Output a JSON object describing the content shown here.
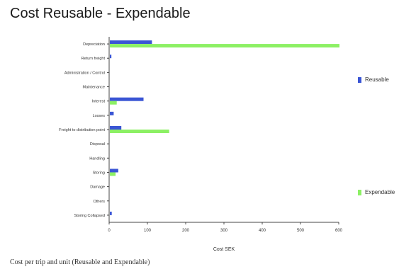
{
  "title": "Cost Reusable - Expendable",
  "caption": "Cost per trip and unit (Reusable and Expendable)",
  "chart_data": {
    "type": "bar",
    "orientation": "horizontal",
    "categories": [
      "Depreciation",
      "Return freight",
      "Administration / Control",
      "Maintenance",
      "Interest",
      "Losses",
      "Freight to distribution point",
      "Disposal",
      "Handling",
      "Storing",
      "Damage",
      "Others",
      "Storing Collapsed"
    ],
    "series": [
      {
        "name": "Reusable",
        "color": "#3a55d4",
        "values": [
          110,
          4,
          0,
          0,
          88,
          10,
          30,
          0,
          0,
          22,
          0,
          0,
          5
        ]
      },
      {
        "name": "Expendable",
        "color": "#8cf064",
        "values": [
          600,
          0,
          0,
          0,
          18,
          0,
          155,
          0,
          0,
          15,
          0,
          0,
          0
        ]
      }
    ],
    "x_ticks": [
      "0",
      "100",
      "200",
      "300",
      "400",
      "500",
      "600"
    ],
    "xlim": [
      0,
      600
    ],
    "xlabel": "Cost SEK",
    "ylabel": "",
    "grid": false,
    "legend_position": "right"
  }
}
